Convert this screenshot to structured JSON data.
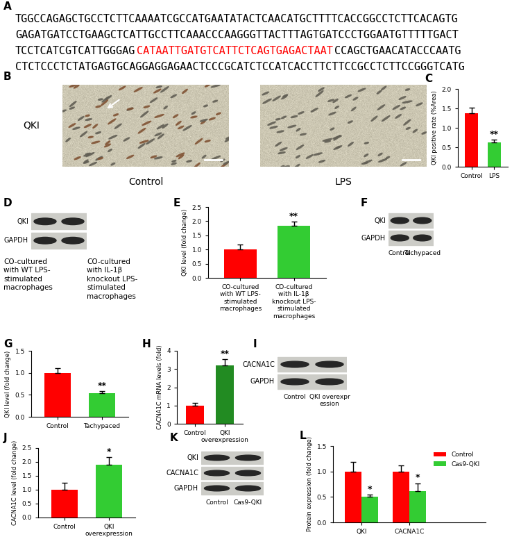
{
  "sequence": {
    "panel": "A",
    "lines": [
      [
        {
          "text": "TGGCCAGAGCTGCCTCTTCAAAATCGCCATGAATATACTCAACATGCTTTTCACCGGCCTCTTCACAGTG",
          "color": "#000000"
        }
      ],
      [
        {
          "text": "GAGATGATCCTGAAGCTCATTGCCTTCAAACCCAAGGGTTACTTTAGTGATCCCTGGAATGTTTTTGACT",
          "color": "#000000"
        }
      ],
      [
        {
          "text": "TCCTCATCGTCATTGGGAG",
          "color": "#000000"
        },
        {
          "text": "CATAATTGATGTCATTCTCAGTGAGACTAAT",
          "color": "#ff0000"
        },
        {
          "text": "CCAGCTGAACATACCCAATG",
          "color": "#000000"
        }
      ],
      [
        {
          "text": "CTCTCCCTCTATGAGTGCAGGAGGAGAACTCCCGCATCTCCATCACCTTCTTCCGCCTCTTCCGGGTCATG",
          "color": "#000000"
        }
      ]
    ]
  },
  "micrographs": {
    "panel": "B",
    "row_label": "QKI",
    "captions": [
      "Control",
      "LPS"
    ]
  },
  "blots": [
    {
      "panel": "D",
      "rows": [
        "QKI",
        "GAPDH"
      ],
      "lanes": [
        "CO-cultured with WT LPS-stimulated macrophages",
        "CO-cultured with IL-1β knockout LPS-stimulated macrophages"
      ]
    },
    {
      "panel": "F",
      "rows": [
        "QKI",
        "GAPDH"
      ],
      "lanes": [
        "Control",
        "Tachypaced"
      ]
    },
    {
      "panel": "I",
      "rows": [
        "CACNA1C",
        "GAPDH"
      ],
      "lanes": [
        "Control",
        "QKI overexpression"
      ]
    },
    {
      "panel": "K",
      "rows": [
        "QKI",
        "CACNA1C",
        "GAPDH"
      ],
      "lanes": [
        "Control",
        "Cas9-QKI"
      ]
    }
  ],
  "chart_data": [
    {
      "panel": "C",
      "type": "bar",
      "categories": [
        "Control",
        "LPS"
      ],
      "values": [
        1.38,
        0.62
      ],
      "errors": [
        0.13,
        0.08
      ],
      "colors": [
        "#ff0000",
        "#33cc33"
      ],
      "y_label": "QKI positive rate (%Area)",
      "ylim": [
        0,
        2.0
      ],
      "yticks": [
        {
          "value": 0,
          "label": "0.0"
        },
        {
          "value": 0.5,
          "label": "0.5"
        },
        {
          "value": 1.0,
          "label": "1.0"
        },
        {
          "value": 1.5,
          "label": "1.5"
        },
        {
          "value": 2.0,
          "label": "2.0"
        }
      ],
      "annotations": [
        {
          "text": "**",
          "category": "LPS"
        }
      ]
    },
    {
      "panel": "E",
      "type": "bar",
      "categories": [
        "CO-cultured with WT LPS-stimulated macrophages",
        "CO-cultured with IL-1β knockout LPS-stimulated macrophages"
      ],
      "values": [
        1.0,
        1.83
      ],
      "errors": [
        0.17,
        0.15
      ],
      "colors": [
        "#ff0000",
        "#33cc33"
      ],
      "y_label": "QKI level (fold change)",
      "ylim": [
        0,
        2.5
      ],
      "yticks": [
        {
          "value": 0,
          "label": "0.0"
        },
        {
          "value": 0.5,
          "label": "0.5"
        },
        {
          "value": 1.0,
          "label": "1.0"
        },
        {
          "value": 1.5,
          "label": "1.5"
        },
        {
          "value": 2.0,
          "label": "2.0"
        },
        {
          "value": 2.5,
          "label": "2.5"
        }
      ],
      "annotations": [
        {
          "text": "**",
          "category": "CO-cultured with IL-1β knockout LPS-stimulated macrophages"
        }
      ]
    },
    {
      "panel": "G",
      "type": "bar",
      "categories": [
        "Control",
        "Tachypaced"
      ],
      "values": [
        1.0,
        0.53
      ],
      "errors": [
        0.1,
        0.06
      ],
      "colors": [
        "#ff0000",
        "#33cc33"
      ],
      "y_label": "QKI level (fold change)",
      "ylim": [
        0,
        1.5
      ],
      "yticks": [
        {
          "value": 0,
          "label": "0.0"
        },
        {
          "value": 0.5,
          "label": "0.5"
        },
        {
          "value": 1.0,
          "label": "1.0"
        },
        {
          "value": 1.5,
          "label": "1.5"
        }
      ],
      "annotations": [
        {
          "text": "**",
          "category": "Tachypaced"
        }
      ]
    },
    {
      "panel": "H",
      "type": "bar",
      "categories": [
        "Control",
        "QKI overexpression"
      ],
      "values": [
        1.0,
        3.2
      ],
      "errors": [
        0.15,
        0.35
      ],
      "colors": [
        "#ff0000",
        "#228b22"
      ],
      "y_label": "CACNA1C mRNA levels (fold)",
      "ylim": [
        0,
        4
      ],
      "yticks": [
        0,
        1,
        2,
        3,
        4
      ],
      "annotations": [
        {
          "text": "**",
          "category": "QKI overexpression"
        }
      ]
    },
    {
      "panel": "J",
      "type": "bar",
      "categories": [
        "Control",
        "QKI overexpression"
      ],
      "values": [
        1.0,
        1.9
      ],
      "errors": [
        0.25,
        0.28
      ],
      "colors": [
        "#ff0000",
        "#33cc33"
      ],
      "y_label": "CACNA1C level (fold change)",
      "ylim": [
        0,
        2.5
      ],
      "yticks": [
        {
          "value": 0,
          "label": "0.0"
        },
        {
          "value": 0.5,
          "label": "0.5"
        },
        {
          "value": 1.0,
          "label": "1.0"
        },
        {
          "value": 1.5,
          "label": "1.5"
        },
        {
          "value": 2.0,
          "label": "2.0"
        },
        {
          "value": 2.5,
          "label": "2.5"
        }
      ],
      "annotations": [
        {
          "text": "*",
          "category": "QKI overexpression"
        }
      ]
    },
    {
      "panel": "L",
      "type": "bar",
      "categories": [
        "QKI",
        "CACNA1C"
      ],
      "series": [
        {
          "name": "Control",
          "color": "#ff0000",
          "values": [
            1.0,
            1.0
          ],
          "errors": [
            0.18,
            0.12
          ]
        },
        {
          "name": "Cas9-QKI",
          "color": "#33cc33",
          "values": [
            0.5,
            0.62
          ],
          "errors": [
            0.05,
            0.15
          ]
        }
      ],
      "y_label": "Protein expression (fold change)",
      "ylim": [
        0,
        1.5
      ],
      "yticks": [
        {
          "value": 0,
          "label": "0.0"
        },
        {
          "value": 0.5,
          "label": "0.5"
        },
        {
          "value": 1.0,
          "label": "1.0"
        },
        {
          "value": 1.5,
          "label": "1.5"
        }
      ],
      "legend": "upper right",
      "annotations": [
        {
          "text": "*",
          "category": "QKI",
          "series": "Cas9-QKI"
        },
        {
          "text": "*",
          "category": "CACNA1C",
          "series": "Cas9-QKI"
        }
      ]
    }
  ]
}
